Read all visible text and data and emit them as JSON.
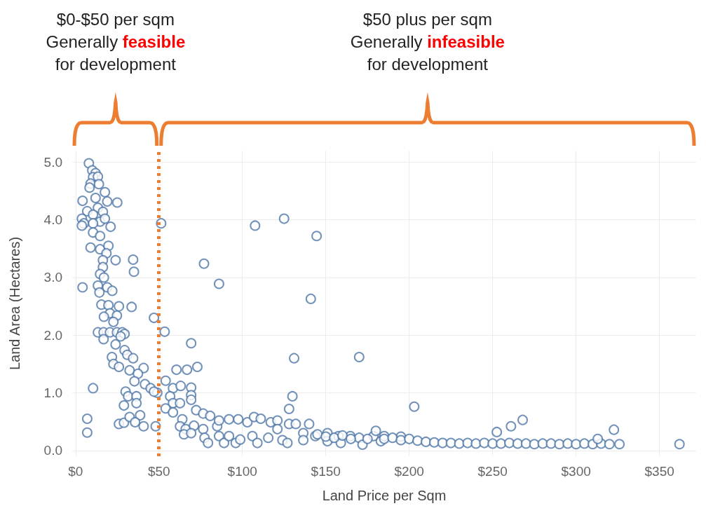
{
  "chart_data": {
    "type": "scatter",
    "xlabel": "Land Price per Sqm",
    "ylabel": "Land Area (Hectares)",
    "xlim": [
      -2,
      372
    ],
    "ylim": [
      -0.1,
      5.2
    ],
    "xticks": [
      {
        "value": 0,
        "label": "$0"
      },
      {
        "value": 50,
        "label": "$50"
      },
      {
        "value": 100,
        "label": "$100"
      },
      {
        "value": 150,
        "label": "$150"
      },
      {
        "value": 200,
        "label": "$200"
      },
      {
        "value": 250,
        "label": "$250"
      },
      {
        "value": 300,
        "label": "$300"
      },
      {
        "value": 350,
        "label": "$350"
      }
    ],
    "yticks": [
      {
        "value": 0,
        "label": "0.0"
      },
      {
        "value": 1,
        "label": "1.0"
      },
      {
        "value": 2,
        "label": "2.0"
      },
      {
        "value": 3,
        "label": "3.0"
      },
      {
        "value": 4,
        "label": "4.0"
      },
      {
        "value": 5,
        "label": "5.0"
      }
    ],
    "grid": true,
    "marker": "circle",
    "series": [
      {
        "color": "#4f77a8",
        "x": [
          8,
          10,
          12,
          10.5,
          13.4,
          9,
          14,
          17.6,
          8.4,
          4.2,
          19,
          25,
          12,
          13.4,
          7,
          10.5,
          16.4,
          3.8,
          5,
          3.8,
          14.7,
          17.6,
          10.5,
          21,
          10.5,
          14.7,
          9,
          14.7,
          19.7,
          18.5,
          16.4,
          24,
          34.5,
          35,
          16.4,
          14.7,
          17,
          4.2,
          13.4,
          19,
          22,
          14.3,
          15.5,
          19.7,
          26,
          33.6,
          20.6,
          17,
          24.8,
          22.7,
          47,
          53.4,
          13.4,
          16.8,
          20.6,
          24.8,
          28,
          29.4,
          16.8,
          27,
          24,
          29.4,
          31,
          21.8,
          22.7,
          34.5,
          26,
          32.4,
          40.8,
          37.4,
          35.3,
          41.6,
          45,
          49,
          47,
          10.5,
          30,
          31.5,
          36.5,
          36.5,
          29,
          60.5,
          54,
          7,
          7,
          26,
          29,
          32.4,
          38.7,
          35.7,
          40.8,
          48,
          51.3,
          69.3,
          66.8,
          73,
          58.4,
          63,
          69.3,
          69.3,
          69.3,
          56.7,
          58.4,
          62.6,
          54,
          58.4,
          64,
          72.3,
          76.5,
          80.7,
          62.6,
          66,
          65,
          71,
          69.3,
          76.5,
          77.3,
          79.4,
          84.9,
          86,
          89,
          92,
          96,
          98.7,
          86,
          92,
          97.5,
          103,
          107,
          111,
          106,
          109,
          115.5,
          117,
          121,
          121,
          124,
          127,
          128,
          130,
          131,
          128,
          132,
          136.5,
          140,
          143.7,
          151,
          157.6,
          164.7,
          170,
          178.6,
          180,
          170,
          136.5,
          151,
          159,
          172,
          183,
          107.6,
          125,
          144.5,
          77,
          86,
          141,
          203,
          252.5,
          261,
          268,
          322.7,
          326,
          362,
          145,
          150,
          155,
          160,
          165,
          175,
          185,
          195,
          185,
          190,
          195,
          200,
          205,
          210,
          215,
          220,
          225,
          230,
          235,
          240,
          245,
          250,
          255,
          260,
          265,
          270,
          275,
          280,
          285,
          290,
          295,
          300,
          305,
          310,
          315,
          320,
          313
        ],
        "values": [
          4.98,
          4.86,
          4.81,
          4.74,
          4.75,
          4.63,
          4.62,
          4.48,
          4.56,
          4.33,
          4.32,
          4.3,
          4.38,
          4.21,
          4.15,
          4.09,
          4.14,
          4.02,
          3.94,
          3.9,
          3.97,
          4.02,
          3.94,
          3.88,
          3.78,
          3.72,
          3.52,
          3.49,
          3.55,
          3.42,
          3.3,
          3.3,
          3.31,
          3.1,
          3.18,
          3.06,
          3.0,
          2.83,
          2.86,
          2.83,
          2.77,
          2.74,
          2.53,
          2.52,
          2.5,
          2.49,
          2.38,
          2.32,
          2.34,
          2.23,
          2.3,
          2.06,
          2.05,
          2.05,
          2.05,
          2.05,
          2.05,
          2.02,
          1.93,
          1.98,
          1.84,
          1.74,
          1.66,
          1.62,
          1.5,
          1.6,
          1.45,
          1.39,
          1.43,
          1.33,
          1.2,
          1.15,
          1.08,
          1.0,
          1.02,
          1.08,
          1.02,
          0.94,
          0.94,
          0.82,
          0.78,
          1.4,
          1.21,
          0.55,
          0.31,
          0.46,
          0.48,
          0.58,
          0.61,
          0.49,
          0.42,
          0.42,
          3.94,
          1.86,
          1.4,
          1.45,
          1.08,
          1.12,
          1.09,
          0.96,
          0.88,
          0.94,
          0.82,
          0.82,
          0.73,
          0.66,
          0.54,
          0.7,
          0.64,
          0.6,
          0.42,
          0.37,
          0.28,
          0.43,
          0.3,
          0.37,
          0.22,
          0.13,
          0.42,
          0.25,
          0.13,
          0.25,
          0.13,
          0.19,
          0.52,
          0.54,
          0.54,
          0.49,
          0.58,
          0.55,
          0.25,
          0.13,
          0.22,
          0.49,
          0.52,
          0.37,
          0.18,
          0.13,
          0.72,
          0.94,
          1.6,
          0.46,
          0.46,
          0.3,
          0.46,
          0.25,
          0.3,
          0.25,
          0.25,
          0.22,
          0.25,
          0.34,
          1.62,
          0.18,
          0.16,
          0.13,
          0.1,
          0.16,
          3.9,
          4.02,
          3.72,
          3.24,
          2.89,
          2.63,
          0.76,
          0.32,
          0.42,
          0.53,
          0.36,
          0.11,
          0.11,
          0.28,
          0.24,
          0.22,
          0.26,
          0.2,
          0.2,
          0.25,
          0.24,
          0.2,
          0.22,
          0.18,
          0.2,
          0.17,
          0.15,
          0.14,
          0.13,
          0.13,
          0.12,
          0.13,
          0.12,
          0.13,
          0.12,
          0.12,
          0.13,
          0.12,
          0.12,
          0.11,
          0.12,
          0.12,
          0.11,
          0.12,
          0.11,
          0.12,
          0.11,
          0.12,
          0.11,
          0.2
        ]
      }
    ],
    "ref_lines": [
      {
        "axis": "x",
        "value": 50,
        "color": "#ed7d31",
        "line_style": "dotted"
      }
    ],
    "annotations": [
      "$0-$50 per sqm\nGenerally feasible\nfor development",
      "$50 plus per sqm\nGenerally infeasible\nfor development"
    ]
  }
}
